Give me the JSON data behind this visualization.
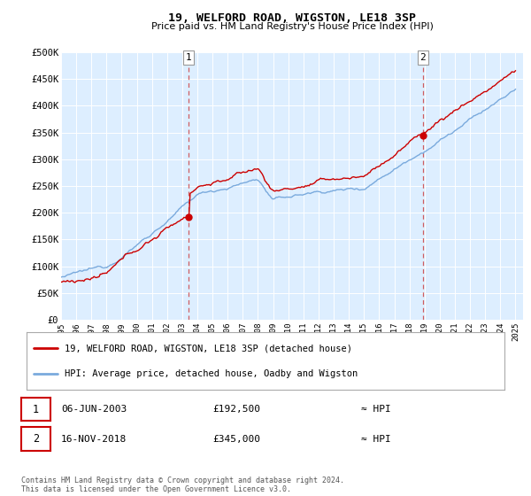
{
  "title": "19, WELFORD ROAD, WIGSTON, LE18 3SP",
  "subtitle": "Price paid vs. HM Land Registry's House Price Index (HPI)",
  "legend_line1": "19, WELFORD ROAD, WIGSTON, LE18 3SP (detached house)",
  "legend_line2": "HPI: Average price, detached house, Oadby and Wigston",
  "sale1_date": "06-JUN-2003",
  "sale1_price": "£192,500",
  "sale1_hpi": "≈ HPI",
  "sale2_date": "16-NOV-2018",
  "sale2_price": "£345,000",
  "sale2_hpi": "≈ HPI",
  "footnote": "Contains HM Land Registry data © Crown copyright and database right 2024.\nThis data is licensed under the Open Government Licence v3.0.",
  "hpi_color": "#7aaadd",
  "price_color": "#cc0000",
  "marker_color": "#cc0000",
  "dashed_color": "#cc4444",
  "background_color": "#ffffff",
  "plot_bg_color": "#ddeeff",
  "grid_color": "#ffffff",
  "ylim": [
    0,
    500000
  ],
  "yticks": [
    0,
    50000,
    100000,
    150000,
    200000,
    250000,
    300000,
    350000,
    400000,
    450000,
    500000
  ],
  "year_start": 1995,
  "year_end": 2025,
  "sale1_year": 2003.43,
  "sale1_value": 192500,
  "sale2_year": 2018.88,
  "sale2_value": 345000
}
